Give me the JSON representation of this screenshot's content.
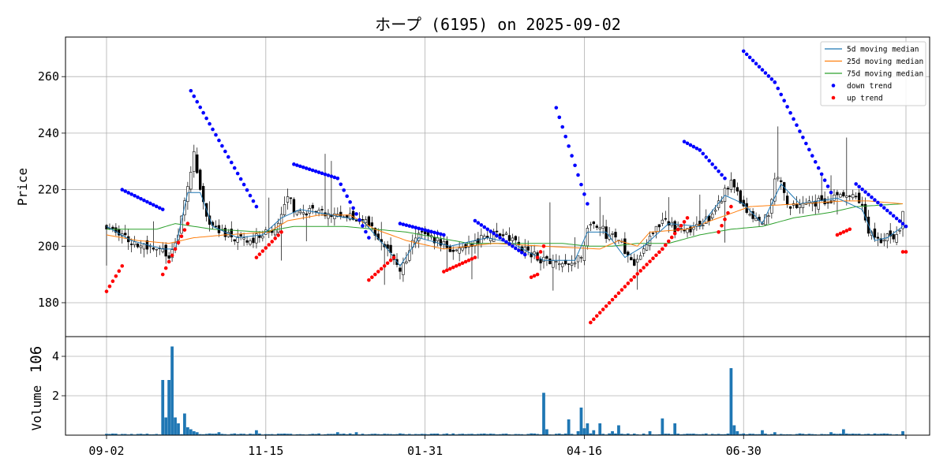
{
  "chart_data": [
    {
      "type": "candlestick",
      "title": "ホープ (6195) on 2025-09-02",
      "ylabel": "Price",
      "ylim": [
        168,
        274
      ],
      "yticks": [
        180,
        200,
        220,
        240,
        260
      ],
      "grid": true,
      "legend_position": "top-right",
      "xtick_labels": [
        "09-02",
        "11-15",
        "01-31",
        "04-16",
        "06-30"
      ],
      "series": [
        {
          "name": " 5d moving median",
          "color": "#1f77b4"
        },
        {
          "name": "25d moving median",
          "color": "#ff7f0e"
        },
        {
          "name": "75d moving median",
          "color": "#2ca02c"
        },
        {
          "name": "down trend",
          "color": "#0000ff"
        },
        {
          "name": "up trend",
          "color": "#ff0000"
        }
      ],
      "close_anchors": [
        [
          0,
          207
        ],
        [
          4,
          204
        ],
        [
          10,
          201
        ],
        [
          16,
          199
        ],
        [
          20,
          197
        ],
        [
          22,
          200
        ],
        [
          26,
          220
        ],
        [
          28,
          232
        ],
        [
          30,
          220
        ],
        [
          32,
          212
        ],
        [
          34,
          206
        ],
        [
          38,
          204
        ],
        [
          42,
          203
        ],
        [
          46,
          202
        ],
        [
          50,
          204
        ],
        [
          54,
          207
        ],
        [
          56,
          210
        ],
        [
          58,
          218
        ],
        [
          60,
          213
        ],
        [
          66,
          212
        ],
        [
          72,
          211
        ],
        [
          78,
          211
        ],
        [
          82,
          209
        ],
        [
          86,
          205
        ],
        [
          90,
          200
        ],
        [
          93,
          192
        ],
        [
          95,
          193
        ],
        [
          98,
          202
        ],
        [
          100,
          205
        ],
        [
          104,
          203
        ],
        [
          110,
          199
        ],
        [
          116,
          201
        ],
        [
          122,
          203
        ],
        [
          126,
          205
        ],
        [
          130,
          202
        ],
        [
          136,
          197
        ],
        [
          140,
          195
        ],
        [
          144,
          194
        ],
        [
          148,
          194
        ],
        [
          152,
          196
        ],
        [
          154,
          207
        ],
        [
          158,
          208
        ],
        [
          160,
          204
        ],
        [
          164,
          203
        ],
        [
          166,
          198
        ],
        [
          168,
          194
        ],
        [
          170,
          195
        ],
        [
          172,
          200
        ],
        [
          176,
          206
        ],
        [
          178,
          210
        ],
        [
          182,
          206
        ],
        [
          186,
          206
        ],
        [
          190,
          207
        ],
        [
          194,
          211
        ],
        [
          198,
          219
        ],
        [
          200,
          222
        ],
        [
          202,
          218
        ],
        [
          206,
          210
        ],
        [
          210,
          208
        ],
        [
          212,
          212
        ],
        [
          214,
          224
        ],
        [
          216,
          222
        ],
        [
          218,
          214
        ],
        [
          222,
          214
        ],
        [
          226,
          215
        ],
        [
          230,
          216
        ],
        [
          234,
          217
        ],
        [
          238,
          218
        ],
        [
          240,
          219
        ],
        [
          242,
          214
        ],
        [
          244,
          205
        ],
        [
          246,
          203
        ],
        [
          248,
          201
        ],
        [
          250,
          203
        ],
        [
          252,
          204
        ],
        [
          254,
          207
        ],
        [
          255,
          211
        ]
      ],
      "ma5_anchors": [
        [
          0,
          207
        ],
        [
          8,
          202
        ],
        [
          18,
          199
        ],
        [
          22,
          199
        ],
        [
          26,
          219
        ],
        [
          30,
          219
        ],
        [
          34,
          207
        ],
        [
          42,
          203
        ],
        [
          50,
          204
        ],
        [
          56,
          210
        ],
        [
          62,
          213
        ],
        [
          72,
          211
        ],
        [
          82,
          209
        ],
        [
          90,
          199
        ],
        [
          94,
          193
        ],
        [
          100,
          203
        ],
        [
          110,
          200
        ],
        [
          122,
          203
        ],
        [
          130,
          201
        ],
        [
          140,
          195
        ],
        [
          150,
          195
        ],
        [
          154,
          205
        ],
        [
          160,
          205
        ],
        [
          166,
          196
        ],
        [
          172,
          200
        ],
        [
          180,
          208
        ],
        [
          190,
          207
        ],
        [
          198,
          218
        ],
        [
          204,
          215
        ],
        [
          210,
          208
        ],
        [
          216,
          222
        ],
        [
          222,
          215
        ],
        [
          234,
          217
        ],
        [
          242,
          213
        ],
        [
          246,
          202
        ],
        [
          250,
          203
        ],
        [
          255,
          207
        ]
      ],
      "ma25_anchors": [
        [
          0,
          204
        ],
        [
          10,
          202
        ],
        [
          20,
          201
        ],
        [
          28,
          203
        ],
        [
          38,
          204
        ],
        [
          52,
          205
        ],
        [
          58,
          209
        ],
        [
          68,
          211
        ],
        [
          78,
          211
        ],
        [
          86,
          206
        ],
        [
          96,
          202
        ],
        [
          108,
          199
        ],
        [
          124,
          201
        ],
        [
          140,
          200
        ],
        [
          158,
          199
        ],
        [
          164,
          202
        ],
        [
          170,
          200
        ],
        [
          174,
          205
        ],
        [
          186,
          206
        ],
        [
          196,
          210
        ],
        [
          206,
          214
        ],
        [
          222,
          215
        ],
        [
          236,
          216
        ],
        [
          244,
          216
        ],
        [
          255,
          215
        ]
      ],
      "ma75_anchors": [
        [
          0,
          206
        ],
        [
          16,
          206
        ],
        [
          22,
          208
        ],
        [
          34,
          206
        ],
        [
          50,
          205
        ],
        [
          60,
          207
        ],
        [
          76,
          207
        ],
        [
          96,
          205
        ],
        [
          116,
          201
        ],
        [
          130,
          201
        ],
        [
          146,
          201
        ],
        [
          154,
          200
        ],
        [
          162,
          200
        ],
        [
          170,
          201
        ],
        [
          180,
          201
        ],
        [
          190,
          204
        ],
        [
          200,
          206
        ],
        [
          210,
          207
        ],
        [
          220,
          210
        ],
        [
          232,
          212
        ],
        [
          240,
          214
        ],
        [
          255,
          215
        ]
      ],
      "down_trend_segments": [
        [
          5,
          220,
          18,
          213
        ],
        [
          27,
          255,
          48,
          214
        ],
        [
          60,
          229,
          74,
          224
        ],
        [
          74,
          224,
          84,
          203
        ],
        [
          94,
          208,
          108,
          204
        ],
        [
          118,
          209,
          134,
          197
        ],
        [
          144,
          249,
          154,
          215
        ],
        [
          185,
          237,
          190,
          234
        ],
        [
          190,
          234,
          198,
          224
        ],
        [
          204,
          269,
          214,
          258
        ],
        [
          214,
          258,
          232,
          219
        ],
        [
          240,
          222,
          256,
          207
        ]
      ],
      "up_trend_segments": [
        [
          0,
          184,
          5,
          193
        ],
        [
          18,
          190,
          26,
          208
        ],
        [
          48,
          196,
          56,
          205
        ],
        [
          84,
          188,
          92,
          196
        ],
        [
          108,
          191,
          118,
          196
        ],
        [
          136,
          189,
          138,
          190
        ],
        [
          138,
          196,
          140,
          200
        ],
        [
          155,
          173,
          168,
          188
        ],
        [
          168,
          188,
          178,
          199
        ],
        [
          178,
          199,
          186,
          210
        ],
        [
          196,
          205,
          200,
          214
        ],
        [
          234,
          204,
          238,
          206
        ],
        [
          255,
          198,
          256,
          198
        ]
      ],
      "volume_ylabel": "Volume",
      "volume_exponent": "10^6",
      "volume_ylim": [
        0,
        5.0
      ],
      "volume_yticks": [
        2,
        4
      ],
      "volume_baseline": 0.06,
      "volume_spikes": [
        [
          18,
          2.8
        ],
        [
          19,
          0.9
        ],
        [
          20,
          2.8
        ],
        [
          21,
          4.5
        ],
        [
          22,
          0.9
        ],
        [
          23,
          0.6
        ],
        [
          25,
          1.1
        ],
        [
          26,
          0.4
        ],
        [
          27,
          0.3
        ],
        [
          28,
          0.2
        ],
        [
          29,
          0.15
        ],
        [
          36,
          0.15
        ],
        [
          48,
          0.25
        ],
        [
          74,
          0.15
        ],
        [
          80,
          0.15
        ],
        [
          140,
          2.15
        ],
        [
          141,
          0.3
        ],
        [
          148,
          0.8
        ],
        [
          151,
          0.2
        ],
        [
          152,
          1.4
        ],
        [
          153,
          0.35
        ],
        [
          154,
          0.6
        ],
        [
          156,
          0.25
        ],
        [
          158,
          0.6
        ],
        [
          162,
          0.2
        ],
        [
          164,
          0.5
        ],
        [
          174,
          0.2
        ],
        [
          178,
          0.85
        ],
        [
          182,
          0.6
        ],
        [
          200,
          3.4
        ],
        [
          201,
          0.5
        ],
        [
          202,
          0.2
        ],
        [
          210,
          0.25
        ],
        [
          214,
          0.15
        ],
        [
          232,
          0.15
        ],
        [
          236,
          0.3
        ],
        [
          255,
          0.2
        ]
      ]
    }
  ]
}
